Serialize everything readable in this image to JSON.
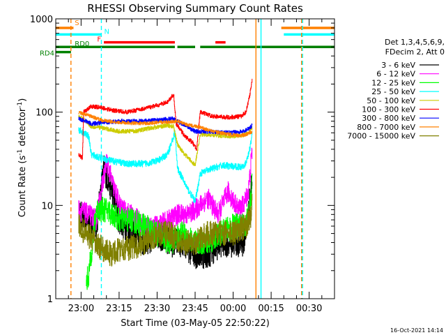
{
  "chart_data": {
    "type": "line",
    "title": "RHESSI Observing Summary Count Rates",
    "xlabel": "Start Time (03-May-05 22:50:22)",
    "ylabel": "Count Rate (s",
    "ylabel_sup": "-1",
    "ylabel_rest": " detector",
    "ylabel_close": ")",
    "y_scale": "log",
    "ylim": [
      1,
      1000
    ],
    "xlim_minutes": [
      -10,
      100
    ],
    "x_ticks": [
      {
        "label": "23:00",
        "min": 0
      },
      {
        "label": "23:15",
        "min": 15
      },
      {
        "label": "23:30",
        "min": 30
      },
      {
        "label": "23:45",
        "min": 45
      },
      {
        "label": "00:00",
        "min": 60
      },
      {
        "label": "00:15",
        "min": 75
      },
      {
        "label": "00:30",
        "min": 90
      }
    ],
    "y_ticks": [
      {
        "label": "1",
        "value": 1
      },
      {
        "label": "10",
        "value": 10
      },
      {
        "label": "100",
        "value": 100
      },
      {
        "label": "1000",
        "value": 1000
      }
    ],
    "legend_header": [
      "Det 1,3,4,5,6,9,",
      "FDecim 2, Att 0"
    ],
    "legend_placement": "right",
    "timestamp": "16-Oct-2021 14:14",
    "state_bars": [
      {
        "label": "S",
        "color": "#ff8000",
        "y": 800,
        "segments": [
          [
            -10,
            -3
          ],
          [
            79,
            100
          ]
        ]
      },
      {
        "label": "N",
        "color": "#00ffff",
        "y": 680,
        "segments": [
          [
            -10,
            8
          ],
          [
            80,
            100
          ]
        ]
      },
      {
        "label": "F",
        "color": "#ff0000",
        "y": 560,
        "segments": [
          [
            9,
            37
          ],
          [
            53,
            57
          ]
        ]
      },
      {
        "label": "RD0",
        "color": "#008000",
        "y": 500,
        "segments": [
          [
            -10,
            37
          ],
          [
            38,
            45
          ],
          [
            47,
            100
          ]
        ]
      },
      {
        "label": "RD4",
        "color": "#008000",
        "y": 440,
        "segments": [
          [
            -10,
            -4
          ]
        ]
      }
    ],
    "vlines": [
      {
        "min": -4,
        "color": "#ff8000",
        "style": "dashed"
      },
      {
        "min": 8,
        "color": "#00ffff",
        "style": "dashed"
      },
      {
        "min": 69,
        "color": "#ff8000",
        "style": "solid"
      },
      {
        "min": 71,
        "color": "#00ffff",
        "style": "solid"
      },
      {
        "min": 87,
        "color": "#ff8000",
        "style": "dashed"
      },
      {
        "min": 87.4,
        "color": "#00ffff",
        "style": "dashed"
      }
    ],
    "series": [
      {
        "name": "3 - 6 keV",
        "color": "#000000",
        "noise": 0.35,
        "points": [
          [
            -1,
            8
          ],
          [
            2,
            7
          ],
          [
            6,
            6
          ],
          [
            9,
            25
          ],
          [
            12,
            15
          ],
          [
            15,
            7
          ],
          [
            20,
            5
          ],
          [
            25,
            4
          ],
          [
            30,
            5
          ],
          [
            35,
            4
          ],
          [
            40,
            4
          ],
          [
            45,
            3
          ],
          [
            50,
            3
          ],
          [
            55,
            4
          ],
          [
            60,
            4
          ],
          [
            64,
            4
          ],
          [
            66,
            8
          ],
          [
            67.5,
            20
          ]
        ]
      },
      {
        "name": "6 - 12 keV",
        "color": "#ff00ff",
        "noise": 0.25,
        "points": [
          [
            -1,
            9
          ],
          [
            3,
            8
          ],
          [
            6,
            7
          ],
          [
            10,
            30
          ],
          [
            13,
            15
          ],
          [
            16,
            9
          ],
          [
            20,
            8
          ],
          [
            25,
            6
          ],
          [
            30,
            6
          ],
          [
            35,
            7
          ],
          [
            38,
            8
          ],
          [
            42,
            8
          ],
          [
            45,
            9
          ],
          [
            50,
            12
          ],
          [
            54,
            8
          ],
          [
            58,
            14
          ],
          [
            62,
            9
          ],
          [
            64,
            10
          ],
          [
            66,
            14
          ],
          [
            67.5,
            40
          ]
        ]
      },
      {
        "name": "12 - 25 keV",
        "color": "#00ff00",
        "noise": 0.3,
        "points": [
          [
            2,
            1.5
          ],
          [
            3,
            1.8
          ],
          [
            6,
            9
          ],
          [
            10,
            9
          ],
          [
            15,
            7
          ],
          [
            20,
            7
          ],
          [
            25,
            6
          ],
          [
            30,
            5
          ],
          [
            35,
            4
          ],
          [
            40,
            5
          ],
          [
            45,
            4
          ],
          [
            50,
            4
          ],
          [
            55,
            5
          ],
          [
            60,
            6
          ],
          [
            65,
            6
          ],
          [
            67,
            12
          ],
          [
            67.5,
            20
          ]
        ]
      },
      {
        "name": "25 - 50 keV",
        "color": "#00ffff",
        "noise": 0.08,
        "points": [
          [
            -1,
            65
          ],
          [
            1,
            60
          ],
          [
            3,
            55
          ],
          [
            4,
            35
          ],
          [
            8,
            32
          ],
          [
            12,
            30
          ],
          [
            18,
            28
          ],
          [
            25,
            28
          ],
          [
            30,
            30
          ],
          [
            34,
            35
          ],
          [
            37,
            60
          ],
          [
            38,
            25
          ],
          [
            42,
            15
          ],
          [
            45,
            11
          ],
          [
            47,
            22
          ],
          [
            52,
            25
          ],
          [
            56,
            27
          ],
          [
            60,
            26
          ],
          [
            63,
            26
          ],
          [
            65,
            28
          ],
          [
            66.5,
            40
          ],
          [
            67.5,
            60
          ]
        ]
      },
      {
        "name": "50 - 100 keV",
        "color": "#cccc00",
        "noise": 0.05,
        "points": [
          [
            -1,
            90
          ],
          [
            2,
            80
          ],
          [
            4,
            70
          ],
          [
            8,
            68
          ],
          [
            15,
            62
          ],
          [
            22,
            63
          ],
          [
            28,
            68
          ],
          [
            34,
            72
          ],
          [
            36.5,
            70
          ],
          [
            38,
            45
          ],
          [
            41,
            35
          ],
          [
            45,
            27
          ],
          [
            47,
            58
          ],
          [
            54,
            56
          ],
          [
            60,
            55
          ],
          [
            64,
            57
          ],
          [
            66,
            60
          ],
          [
            67.5,
            68
          ]
        ]
      },
      {
        "name": "100 - 300 keV",
        "color": "#ff0000",
        "noise": 0.05,
        "points": [
          [
            -1,
            35
          ],
          [
            0.5,
            32
          ],
          [
            1,
            100
          ],
          [
            4,
            115
          ],
          [
            8,
            112
          ],
          [
            12,
            105
          ],
          [
            18,
            100
          ],
          [
            24,
            108
          ],
          [
            30,
            118
          ],
          [
            34,
            128
          ],
          [
            36.5,
            155
          ],
          [
            37.5,
            75
          ],
          [
            41,
            55
          ],
          [
            44,
            47
          ],
          [
            45.5,
            40
          ],
          [
            47,
            100
          ],
          [
            52,
            90
          ],
          [
            58,
            88
          ],
          [
            63,
            90
          ],
          [
            65,
            100
          ],
          [
            66.5,
            150
          ],
          [
            67.5,
            220
          ]
        ]
      },
      {
        "name": "300 - 800 keV",
        "color": "#0000ff",
        "noise": 0.05,
        "points": [
          [
            -1,
            85
          ],
          [
            2,
            80
          ],
          [
            4,
            75
          ],
          [
            10,
            78
          ],
          [
            16,
            80
          ],
          [
            24,
            80
          ],
          [
            30,
            82
          ],
          [
            36,
            85
          ],
          [
            40,
            75
          ],
          [
            45,
            62
          ],
          [
            50,
            62
          ],
          [
            58,
            60
          ],
          [
            64,
            62
          ],
          [
            66.5,
            68
          ],
          [
            67.5,
            72
          ]
        ]
      },
      {
        "name": "800 - 7000 keV",
        "color": "#ff8000",
        "noise": 0.04,
        "points": [
          [
            -1,
            100
          ],
          [
            4,
            90
          ],
          [
            8,
            82
          ],
          [
            14,
            78
          ],
          [
            20,
            76
          ],
          [
            26,
            76
          ],
          [
            32,
            78
          ],
          [
            38,
            80
          ],
          [
            42,
            73
          ],
          [
            46,
            70
          ],
          [
            52,
            62
          ],
          [
            58,
            58
          ],
          [
            62,
            56
          ],
          [
            65,
            57
          ],
          [
            67.5,
            62
          ]
        ]
      },
      {
        "name": "7000 - 15000 keV",
        "color": "#808000",
        "noise": 0.3,
        "points": [
          [
            -1,
            6
          ],
          [
            2,
            5
          ],
          [
            5,
            4
          ],
          [
            8,
            3.5
          ],
          [
            12,
            3
          ],
          [
            16,
            3.5
          ],
          [
            20,
            3.5
          ],
          [
            25,
            4
          ],
          [
            30,
            5
          ],
          [
            35,
            5
          ],
          [
            40,
            4
          ],
          [
            45,
            4
          ],
          [
            50,
            5
          ],
          [
            55,
            5
          ],
          [
            60,
            5
          ],
          [
            65,
            6
          ],
          [
            67,
            8
          ],
          [
            67.5,
            12
          ]
        ]
      }
    ]
  }
}
